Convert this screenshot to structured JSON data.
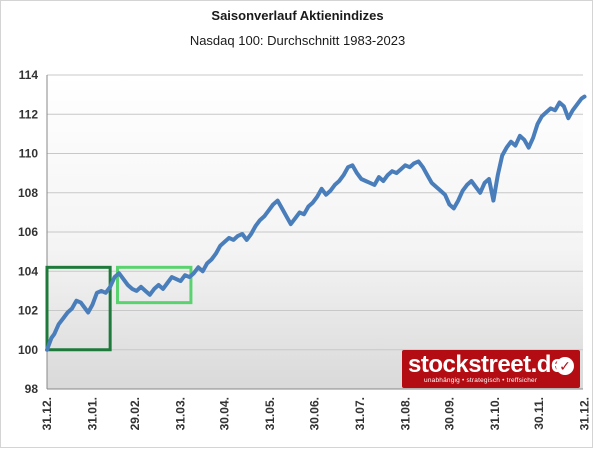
{
  "chart_data": {
    "type": "line",
    "title": "Saisonverlauf Aktienindizes",
    "subtitle": "Nasdaq 100: Durchschnitt 1983-2023",
    "ylim": [
      98,
      114
    ],
    "yticks": [
      "98",
      "100",
      "102",
      "104",
      "106",
      "108",
      "110",
      "112",
      "114"
    ],
    "xlim": [
      0,
      365
    ],
    "xticks": [
      {
        "label": "31.12.",
        "day": 0
      },
      {
        "label": "31.01.",
        "day": 31
      },
      {
        "label": "29.02.",
        "day": 60
      },
      {
        "label": "31.03.",
        "day": 91
      },
      {
        "label": "30.04.",
        "day": 121
      },
      {
        "label": "31.05.",
        "day": 152
      },
      {
        "label": "30.06.",
        "day": 182
      },
      {
        "label": "31.07.",
        "day": 213
      },
      {
        "label": "31.08.",
        "day": 244
      },
      {
        "label": "30.09.",
        "day": 274
      },
      {
        "label": "31.10.",
        "day": 305
      },
      {
        "label": "30.11.",
        "day": 335
      },
      {
        "label": "31.12.",
        "day": 366
      }
    ],
    "grid": true,
    "series": [
      {
        "color": "#4a7ebb",
        "x": [
          0,
          3,
          5,
          8,
          11,
          14,
          17,
          20,
          23,
          26,
          28,
          31,
          34,
          37,
          40,
          43,
          46,
          49,
          52,
          55,
          58,
          61,
          64,
          67,
          70,
          73,
          76,
          79,
          82,
          85,
          88,
          91,
          94,
          97,
          100,
          103,
          106,
          109,
          112,
          115,
          118,
          121,
          124,
          127,
          130,
          133,
          136,
          139,
          142,
          145,
          148,
          151,
          154,
          157,
          160,
          163,
          166,
          169,
          172,
          175,
          178,
          181,
          184,
          187,
          190,
          193,
          196,
          199,
          202,
          205,
          208,
          211,
          214,
          217,
          220,
          223,
          226,
          229,
          232,
          235,
          238,
          241,
          244,
          247,
          250,
          253,
          256,
          259,
          262,
          265,
          268,
          271,
          274,
          277,
          280,
          283,
          286,
          289,
          292,
          295,
          298,
          301,
          304,
          307,
          310,
          313,
          316,
          319,
          322,
          325,
          328,
          331,
          334,
          337,
          340,
          343,
          346,
          349,
          352,
          355,
          358,
          361,
          364,
          366
        ],
        "y": [
          100.0,
          100.6,
          100.8,
          101.3,
          101.6,
          101.9,
          102.1,
          102.5,
          102.4,
          102.1,
          101.9,
          102.3,
          102.9,
          103.0,
          102.9,
          103.2,
          103.7,
          103.9,
          103.6,
          103.3,
          103.1,
          103.0,
          103.2,
          103.0,
          102.8,
          103.1,
          103.3,
          103.1,
          103.4,
          103.7,
          103.6,
          103.5,
          103.8,
          103.7,
          103.9,
          104.2,
          104.0,
          104.4,
          104.6,
          104.9,
          105.3,
          105.5,
          105.7,
          105.6,
          105.8,
          105.9,
          105.6,
          105.9,
          106.3,
          106.6,
          106.8,
          107.1,
          107.4,
          107.6,
          107.2,
          106.8,
          106.4,
          106.7,
          107.0,
          106.9,
          107.3,
          107.5,
          107.8,
          108.2,
          107.9,
          108.1,
          108.4,
          108.6,
          108.9,
          109.3,
          109.4,
          109.0,
          108.7,
          108.6,
          108.5,
          108.4,
          108.8,
          108.6,
          108.9,
          109.1,
          109.0,
          109.2,
          109.4,
          109.3,
          109.5,
          109.6,
          109.3,
          108.9,
          108.5,
          108.3,
          108.1,
          107.9,
          107.4,
          107.2,
          107.6,
          108.1,
          108.4,
          108.6,
          108.3,
          108.0,
          108.5,
          108.7,
          107.6,
          108.9,
          109.9,
          110.3,
          110.6,
          110.4,
          110.9,
          110.7,
          110.3,
          110.8,
          111.5,
          111.9,
          112.1,
          112.3,
          112.2,
          112.6,
          112.4,
          111.8,
          112.2,
          112.5,
          112.8,
          112.9
        ]
      }
    ],
    "annotations": [
      {
        "kind": "box",
        "color": "#1e7a3a",
        "x0": 0,
        "x1": 43,
        "y0": 100,
        "y1": 104.2
      },
      {
        "kind": "box",
        "color": "#59d36e",
        "x0": 48,
        "x1": 98,
        "y0": 102.4,
        "y1": 104.2
      }
    ],
    "logo": {
      "text": "stockstreet.de",
      "tagline": "unabhängig • strategisch • treffsicher"
    }
  }
}
